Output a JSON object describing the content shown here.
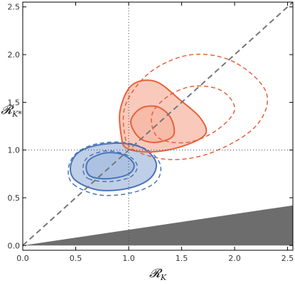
{
  "chart_data": {
    "type": "contour",
    "title": "",
    "xlabel": "𝓡",
    "xlabel_sub": "K",
    "ylabel": "𝓡",
    "ylabel_sub": "K*",
    "xlim": [
      0,
      2.55
    ],
    "ylim": [
      -0.05,
      2.55
    ],
    "xticks": [
      "0.0",
      "0.5",
      "1.0",
      "1.5",
      "2.0",
      "2.5"
    ],
    "yticks": [
      "0.0",
      "0.5",
      "1.0",
      "1.5",
      "2.0",
      "2.5"
    ],
    "grid": false,
    "reference_lines": {
      "x": 1.0,
      "y": 1.0,
      "style": "dotted"
    },
    "diagonal": {
      "from": [
        0,
        0
      ],
      "to": [
        2.55,
        2.55
      ],
      "style": "dashed",
      "color": "#777777"
    },
    "excluded_region": {
      "points": [
        [
          0,
          0
        ],
        [
          2.55,
          0
        ],
        [
          2.55,
          0.42
        ]
      ],
      "color": "#6d6d6d"
    },
    "colors": {
      "blue": "#4a74b8",
      "blue_fill": "#a9bfe0",
      "red": "#e8603a",
      "red_fill": "#f7b8a6"
    },
    "series": [
      {
        "color_key": "blue",
        "contours": [
          {
            "level": 1,
            "style": "solid",
            "filled": true,
            "points": [
              [
                0.65,
                0.72
              ],
              [
                0.82,
                0.7
              ],
              [
                1.0,
                0.75
              ],
              [
                1.05,
                0.85
              ],
              [
                0.95,
                0.95
              ],
              [
                0.78,
                0.97
              ],
              [
                0.63,
                0.9
              ],
              [
                0.6,
                0.8
              ]
            ]
          },
          {
            "level": 2,
            "style": "solid",
            "filled": true,
            "points": [
              [
                0.5,
                0.68
              ],
              [
                0.72,
                0.58
              ],
              [
                1.0,
                0.6
              ],
              [
                1.2,
                0.7
              ],
              [
                1.26,
                0.86
              ],
              [
                1.15,
                1.01
              ],
              [
                0.95,
                1.07
              ],
              [
                0.7,
                1.05
              ],
              [
                0.52,
                0.97
              ],
              [
                0.45,
                0.82
              ]
            ]
          },
          {
            "level": 1,
            "style": "dashed",
            "filled": false,
            "points": [
              [
                0.62,
                0.7
              ],
              [
                0.82,
                0.67
              ],
              [
                1.02,
                0.72
              ],
              [
                1.08,
                0.84
              ],
              [
                0.98,
                0.95
              ],
              [
                0.78,
                0.99
              ],
              [
                0.61,
                0.92
              ],
              [
                0.57,
                0.8
              ]
            ]
          },
          {
            "level": 2,
            "style": "dashed",
            "filled": false,
            "points": [
              [
                0.48,
                0.64
              ],
              [
                0.72,
                0.53
              ],
              [
                1.02,
                0.55
              ],
              [
                1.25,
                0.66
              ],
              [
                1.3,
                0.84
              ],
              [
                1.18,
                1.0
              ],
              [
                0.95,
                1.08
              ],
              [
                0.68,
                1.06
              ],
              [
                0.5,
                0.96
              ],
              [
                0.43,
                0.8
              ]
            ]
          }
        ]
      },
      {
        "color_key": "red",
        "contours": [
          {
            "level": 1,
            "style": "solid",
            "filled": true,
            "points": [
              [
                1.1,
                1.13
              ],
              [
                1.25,
                1.08
              ],
              [
                1.42,
                1.15
              ],
              [
                1.4,
                1.33
              ],
              [
                1.28,
                1.45
              ],
              [
                1.12,
                1.44
              ],
              [
                1.02,
                1.3
              ]
            ]
          },
          {
            "level": 2,
            "style": "solid",
            "filled": true,
            "points": [
              [
                0.98,
                1.02
              ],
              [
                1.2,
                0.98
              ],
              [
                1.48,
                1.03
              ],
              [
                1.72,
                1.16
              ],
              [
                1.68,
                1.33
              ],
              [
                1.48,
                1.53
              ],
              [
                1.25,
                1.72
              ],
              [
                1.03,
                1.68
              ],
              [
                0.92,
                1.42
              ],
              [
                0.93,
                1.15
              ]
            ]
          },
          {
            "level": 1,
            "style": "dashed",
            "filled": false,
            "points": [
              [
                1.28,
                1.13
              ],
              [
                1.55,
                1.08
              ],
              [
                1.82,
                1.2
              ],
              [
                2.0,
                1.42
              ],
              [
                1.88,
                1.62
              ],
              [
                1.62,
                1.67
              ],
              [
                1.38,
                1.57
              ],
              [
                1.22,
                1.37
              ]
            ]
          },
          {
            "level": 2,
            "style": "dashed",
            "filled": false,
            "points": [
              [
                1.05,
                1.0
              ],
              [
                1.4,
                0.9
              ],
              [
                1.8,
                0.98
              ],
              [
                2.2,
                1.25
              ],
              [
                2.3,
                1.6
              ],
              [
                2.0,
                1.92
              ],
              [
                1.6,
                2.0
              ],
              [
                1.22,
                1.83
              ],
              [
                0.98,
                1.5
              ],
              [
                0.96,
                1.18
              ]
            ]
          }
        ]
      }
    ]
  }
}
